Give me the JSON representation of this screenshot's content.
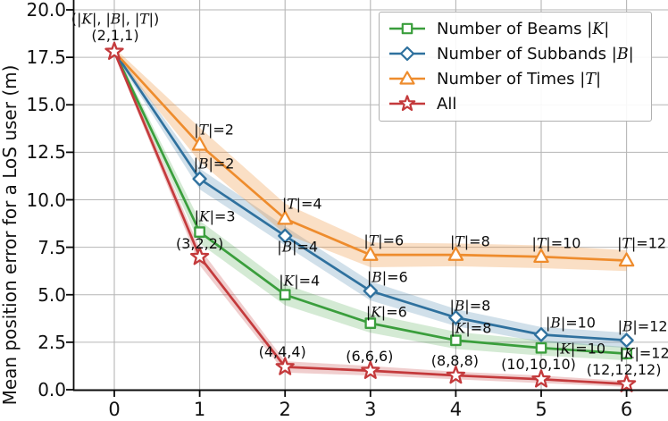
{
  "chart_data": {
    "type": "line",
    "title": "",
    "xlabel": "",
    "ylabel": "Mean position error for a LoS user (m)",
    "x": [
      0,
      1,
      2,
      3,
      4,
      5,
      6
    ],
    "x_ticks": [
      "0",
      "1",
      "2",
      "3",
      "4",
      "5",
      "6"
    ],
    "y_ticks": [
      "0.0",
      "2.5",
      "5.0",
      "7.5",
      "10.0",
      "12.5",
      "15.0",
      "17.5",
      "20.0"
    ],
    "y_tick_values": [
      0,
      2.5,
      5,
      7.5,
      10,
      12.5,
      15,
      17.5,
      20
    ],
    "xlim": [
      -0.48,
      6.48
    ],
    "ylim": [
      0,
      20.5
    ],
    "grid": true,
    "legend_position": "upper right",
    "series": [
      {
        "name_prefix": "Number of Beams",
        "symbol": "K",
        "marker": "square",
        "color": "#3a9e3c",
        "band_opacity": 0.22,
        "first_marker": false,
        "values": [
          17.8,
          8.3,
          5.0,
          3.5,
          2.6,
          2.2,
          1.9
        ],
        "band_halfwidth": [
          0.15,
          0.6,
          0.55,
          0.5,
          0.45,
          0.4,
          0.35
        ],
        "point_labels": [
          null,
          "|K|=3",
          "|K|=4",
          "|K|=6",
          "|K|=8",
          "|K|=10",
          "|K|=12"
        ],
        "label_offsets": [
          null,
          [
            17,
            -17
          ],
          [
            16,
            -15
          ],
          [
            18,
            -12
          ],
          [
            17,
            -13
          ],
          [
            44,
            2
          ],
          [
            20,
            0
          ]
        ]
      },
      {
        "name_prefix": "Number of Subbands",
        "symbol": "B",
        "marker": "diamond",
        "color": "#2f719e",
        "band_opacity": 0.22,
        "first_marker": false,
        "values": [
          17.8,
          11.1,
          8.1,
          5.2,
          3.8,
          2.9,
          2.6
        ],
        "band_halfwidth": [
          0.15,
          0.55,
          0.5,
          0.5,
          0.45,
          0.4,
          0.4
        ],
        "point_labels": [
          null,
          "|B|=2",
          "|B|=4",
          "|B|=6",
          "|B|=8",
          "|B|=10",
          "|B|=12"
        ],
        "label_offsets": [
          null,
          [
            16,
            -16
          ],
          [
            14,
            13
          ],
          [
            19,
            -15
          ],
          [
            16,
            -12
          ],
          [
            33,
            -12
          ],
          [
            18,
            -15
          ]
        ]
      },
      {
        "name_prefix": "Number of Times",
        "symbol": "T",
        "marker": "triangle",
        "color": "#ee8c2d",
        "band_opacity": 0.28,
        "first_marker": false,
        "values": [
          17.8,
          12.9,
          9.0,
          7.1,
          7.1,
          7.0,
          6.8
        ],
        "band_halfwidth": [
          0.2,
          0.9,
          0.8,
          0.65,
          0.6,
          0.6,
          0.55
        ],
        "point_labels": [
          null,
          "|T|=2",
          "|T|=4",
          "|T|=6",
          "|T|=8",
          "|T|=10",
          "|T|=12"
        ],
        "label_offsets": [
          null,
          [
            16,
            -16
          ],
          [
            19,
            -16
          ],
          [
            15,
            -15
          ],
          [
            16,
            -14
          ],
          [
            17,
            -14
          ],
          [
            17,
            -19
          ]
        ]
      },
      {
        "name_prefix": "All",
        "symbol": null,
        "marker": "star",
        "color": "#c43a3c",
        "band_opacity": 0.25,
        "first_marker": true,
        "values": [
          17.8,
          7.0,
          1.2,
          1.0,
          0.75,
          0.55,
          0.3
        ],
        "band_halfwidth": [
          0.15,
          0.45,
          0.3,
          0.25,
          0.2,
          0.2,
          0.15
        ],
        "point_labels": [
          null,
          "(3,2,2)",
          "(4,4,4)",
          "(6,6,6)",
          "(8,8,8)",
          "(10,10,10)",
          "(12,12,12)"
        ],
        "label_offsets": [
          null,
          [
            0,
            -14
          ],
          [
            -3,
            -17
          ],
          [
            -1,
            -16
          ],
          [
            -1,
            -16
          ],
          [
            -3,
            -16
          ],
          [
            -3,
            -16
          ]
        ]
      }
    ],
    "annotations": [
      {
        "text": "(|K|, |B|, |T|)",
        "x": 129,
        "y": 22
      },
      {
        "text": "(2,1,1)",
        "x": 129,
        "y": 40
      }
    ]
  },
  "colors": {
    "grid": "#b6b6b6",
    "spine": "#0a0a0a",
    "background": "#ffffff"
  }
}
